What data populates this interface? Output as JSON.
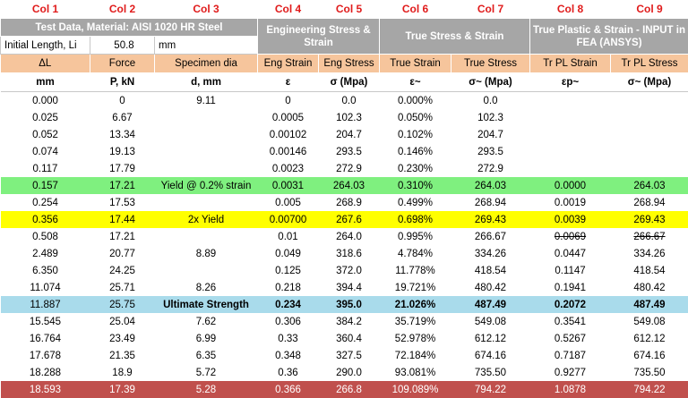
{
  "columns": [
    "Col 1",
    "Col 2",
    "Col 3",
    "Col 4",
    "Col 5",
    "Col 6",
    "Col 7",
    "Col 8",
    "Col 9"
  ],
  "groups": {
    "test_data": "Test Data, Material: AISI 1020 HR Steel",
    "eng": "Engineering Stress & Strain",
    "true": "True Stress & Strain",
    "plastic": "True Plastic & Strain - INPUT in FEA (ANSYS)"
  },
  "initial_length": {
    "label": "Initial Length, Li",
    "value": "50.8",
    "unit": "mm"
  },
  "headers": [
    "ΔL",
    "Force",
    "Specimen dia",
    "Eng Strain",
    "Eng Stress",
    "True Strain",
    "True Stress",
    "Tr PL Strain",
    "Tr PL Stress"
  ],
  "units": [
    "mm",
    "P, kN",
    "d, mm",
    "ε",
    "σ (Mpa)",
    "ε~",
    "σ~ (Mpa)",
    "εp~",
    "σ~ (Mpa)"
  ],
  "rows": [
    {
      "style": "",
      "cells": [
        "0.000",
        "0",
        "9.11",
        "0",
        "0.0",
        "0.000%",
        "0.0",
        "",
        ""
      ]
    },
    {
      "style": "",
      "cells": [
        "0.025",
        "6.67",
        "",
        "0.0005",
        "102.3",
        "0.050%",
        "102.3",
        "",
        ""
      ]
    },
    {
      "style": "",
      "cells": [
        "0.052",
        "13.34",
        "",
        "0.00102",
        "204.7",
        "0.102%",
        "204.7",
        "",
        ""
      ]
    },
    {
      "style": "",
      "cells": [
        "0.074",
        "19.13",
        "",
        "0.00146",
        "293.5",
        "0.146%",
        "293.5",
        "",
        ""
      ]
    },
    {
      "style": "",
      "cells": [
        "0.117",
        "17.79",
        "",
        "0.0023",
        "272.9",
        "0.230%",
        "272.9",
        "",
        ""
      ]
    },
    {
      "style": "green",
      "cells": [
        "0.157",
        "17.21",
        "Yield @ 0.2% strain",
        "0.0031",
        "264.03",
        "0.310%",
        "264.03",
        "0.0000",
        "264.03"
      ]
    },
    {
      "style": "",
      "cells": [
        "0.254",
        "17.53",
        "",
        "0.005",
        "268.9",
        "0.499%",
        "268.94",
        "0.0019",
        "268.94"
      ]
    },
    {
      "style": "yellow",
      "cells": [
        "0.356",
        "17.44",
        "2x Yield",
        "0.00700",
        "267.6",
        "0.698%",
        "269.43",
        "0.0039",
        "269.43"
      ]
    },
    {
      "style": "",
      "cells": [
        "0.508",
        "17.21",
        "",
        "0.01",
        "264.0",
        "0.995%",
        "266.67",
        "0.0069",
        "266.67"
      ]
    },
    {
      "style": "",
      "cells": [
        "2.489",
        "20.77",
        "8.89",
        "0.049",
        "318.6",
        "4.784%",
        "334.26",
        "0.0447",
        "334.26"
      ]
    },
    {
      "style": "",
      "cells": [
        "6.350",
        "24.25",
        "",
        "0.125",
        "372.0",
        "11.778%",
        "418.54",
        "0.1147",
        "418.54"
      ]
    },
    {
      "style": "",
      "cells": [
        "11.074",
        "25.71",
        "8.26",
        "0.218",
        "394.4",
        "19.721%",
        "480.42",
        "0.1941",
        "480.42"
      ]
    },
    {
      "style": "blue",
      "cells": [
        "11.887",
        "25.75",
        "Ultimate Strength",
        "0.234",
        "395.0",
        "21.026%",
        "487.49",
        "0.2072",
        "487.49"
      ]
    },
    {
      "style": "",
      "cells": [
        "15.545",
        "25.04",
        "7.62",
        "0.306",
        "384.2",
        "35.719%",
        "549.08",
        "0.3541",
        "549.08"
      ]
    },
    {
      "style": "",
      "cells": [
        "16.764",
        "23.49",
        "6.99",
        "0.33",
        "360.4",
        "52.978%",
        "612.12",
        "0.5267",
        "612.12"
      ]
    },
    {
      "style": "",
      "cells": [
        "17.678",
        "21.35",
        "6.35",
        "0.348",
        "327.5",
        "72.184%",
        "674.16",
        "0.7187",
        "674.16"
      ]
    },
    {
      "style": "",
      "cells": [
        "18.288",
        "18.9",
        "5.72",
        "0.36",
        "290.0",
        "93.081%",
        "735.50",
        "0.9277",
        "735.50"
      ]
    },
    {
      "style": "red",
      "cells": [
        "18.593",
        "17.39",
        "5.28",
        "0.366",
        "266.8",
        "109.089%",
        "794.22",
        "1.0878",
        "794.22"
      ]
    }
  ]
}
